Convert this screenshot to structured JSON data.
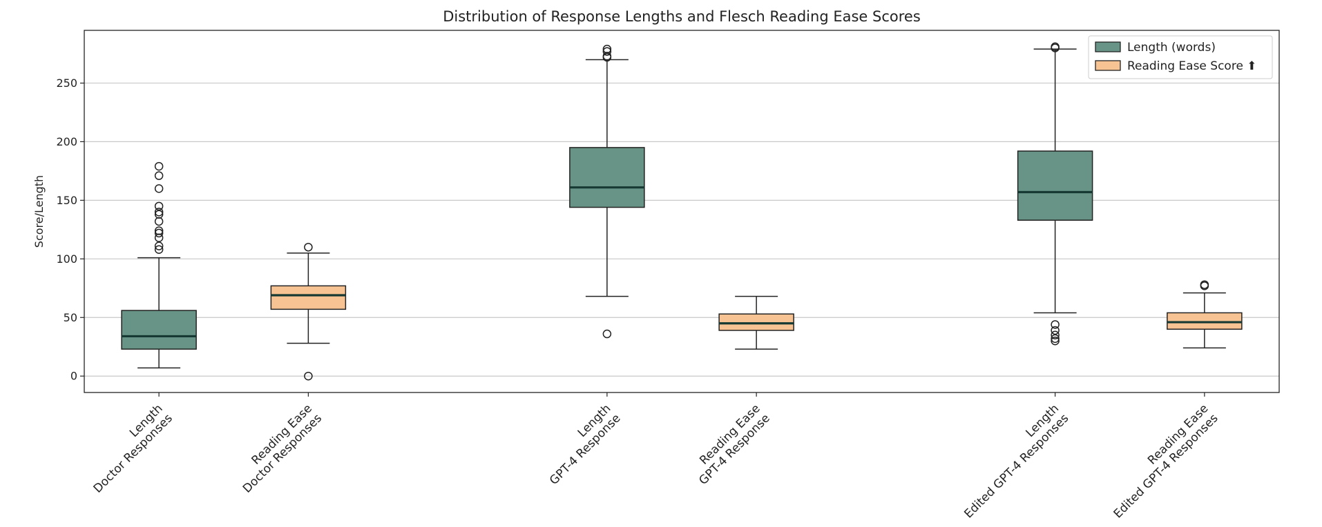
{
  "chart_data": {
    "type": "box",
    "title": "Distribution of Response Lengths and Flesch Reading Ease Scores",
    "xlabel": "",
    "ylabel": "Score/Length",
    "ylim": [
      -14,
      295
    ],
    "yticks": [
      0,
      50,
      100,
      150,
      200,
      250
    ],
    "grid": "horizontal",
    "legend_position": "top-right",
    "colors": {
      "length": "#679486",
      "reading_ease": "#f7c393"
    },
    "legend": [
      "Length (words)",
      "Reading Ease Score ⬆"
    ],
    "boxes": [
      {
        "label": [
          "Length",
          "Doctor Responses"
        ],
        "series": "length",
        "x": 1,
        "whisker_low": 7,
        "q1": 23,
        "median": 34,
        "q3": 56,
        "whisker_high": 101,
        "outliers": [
          108,
          111,
          118,
          122,
          124,
          132,
          138,
          140,
          145,
          160,
          171,
          179
        ]
      },
      {
        "label": [
          "Reading Ease",
          "Doctor Responses"
        ],
        "series": "reading_ease",
        "x": 2,
        "whisker_low": 28,
        "q1": 57,
        "median": 69,
        "q3": 77,
        "whisker_high": 105,
        "outliers": [
          0,
          110
        ]
      },
      {
        "label": [
          "Length",
          "GPT-4 Response"
        ],
        "series": "length",
        "x": 4,
        "whisker_low": 68,
        "q1": 144,
        "median": 161,
        "q3": 195,
        "whisker_high": 270,
        "outliers": [
          36,
          272,
          273,
          277,
          279
        ]
      },
      {
        "label": [
          "Reading Ease",
          "GPT-4 Response"
        ],
        "series": "reading_ease",
        "x": 5,
        "whisker_low": 23,
        "q1": 39,
        "median": 45,
        "q3": 53,
        "whisker_high": 68,
        "outliers": []
      },
      {
        "label": [
          "Length",
          "Edited GPT-4 Responses"
        ],
        "series": "length",
        "x": 7,
        "whisker_low": 54,
        "q1": 133,
        "median": 157,
        "q3": 192,
        "whisker_high": 279,
        "outliers": [
          30,
          32,
          35,
          39,
          44,
          280,
          281
        ]
      },
      {
        "label": [
          "Reading Ease",
          "Edited GPT-4 Responses"
        ],
        "series": "reading_ease",
        "x": 8,
        "whisker_low": 24,
        "q1": 40,
        "median": 46,
        "q3": 54,
        "whisker_high": 71,
        "outliers": [
          77,
          78
        ]
      }
    ]
  }
}
